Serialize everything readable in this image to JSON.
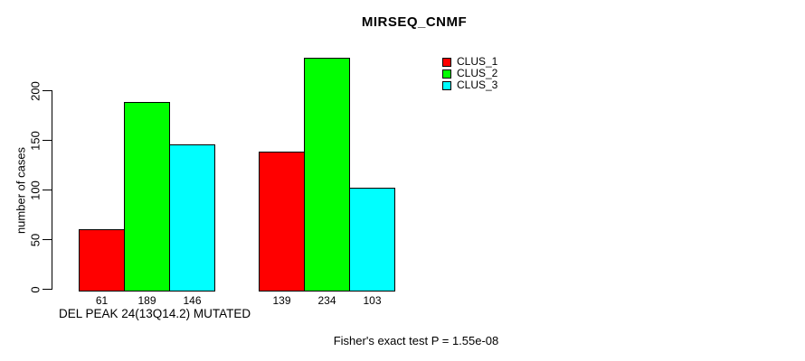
{
  "chart_data": {
    "type": "bar",
    "title": "MIRSEQ_CNMF",
    "xlabel": "DEL PEAK 24(13Q14.2) MUTATED",
    "ylabel": "number of cases",
    "ylim": [
      0,
      200
    ],
    "yticks": [
      0,
      50,
      100,
      150,
      200
    ],
    "categories": [
      "",
      ""
    ],
    "series": [
      {
        "name": "CLUS_1",
        "color": "#ff0000",
        "values": [
          61,
          139
        ]
      },
      {
        "name": "CLUS_2",
        "color": "#00ff00",
        "values": [
          189,
          234
        ]
      },
      {
        "name": "CLUS_3",
        "color": "#00ffff",
        "values": [
          146,
          103
        ]
      }
    ],
    "bar_value_labels": [
      [
        61,
        189,
        146
      ],
      [
        139,
        234,
        103
      ]
    ],
    "annotation": "Fisher's exact test P = 1.55e-08",
    "legend_position": "top-right",
    "grid": false,
    "background": "#ffffff",
    "axis_color": "#000000"
  }
}
